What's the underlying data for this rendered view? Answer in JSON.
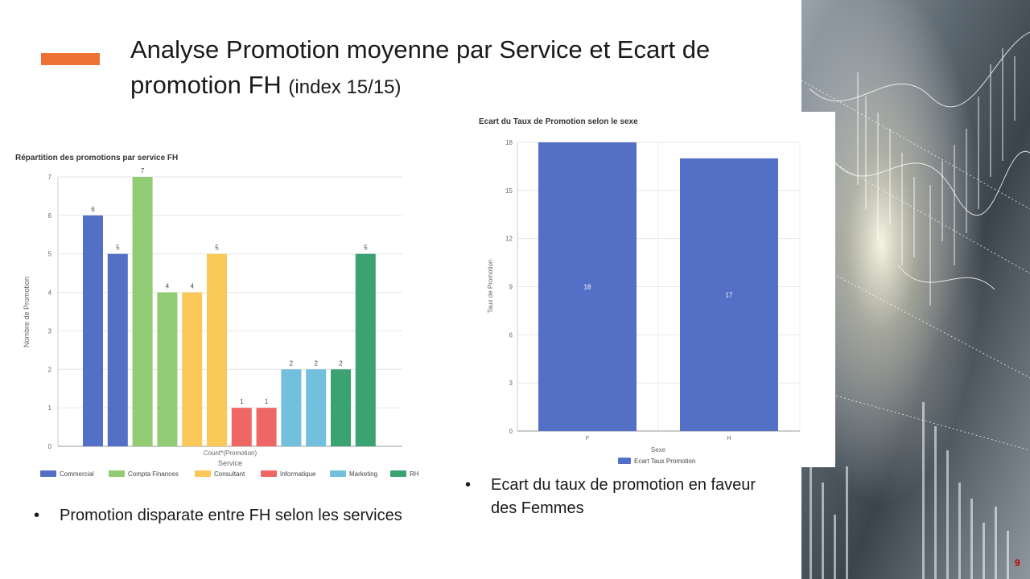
{
  "slide": {
    "title_main": "Analyse Promotion moyenne par Service et  Ecart de promotion FH",
    "title_small": "(index 15/15)",
    "page_number": "9",
    "accent_color": "#ed7233"
  },
  "bullets": {
    "left": "Promotion disparate entre FH selon les services",
    "right": "Ecart du taux de promotion en faveur des Femmes",
    "marker": "•"
  },
  "chart_data": [
    {
      "type": "bar",
      "title": "Répartition des promotions par service FH",
      "xlabel": "Count*(Promotion)",
      "legend_title": "Service",
      "ylabel": "Nombre de Promotion",
      "ylim": [
        0,
        7
      ],
      "yticks": [
        0,
        1,
        2,
        3,
        4,
        5,
        6,
        7
      ],
      "grid": true,
      "legend_position": "bottom",
      "series": [
        {
          "name": "Commercial",
          "color": "#5470c6",
          "values": [
            6,
            5
          ]
        },
        {
          "name": "Compta Finances",
          "color": "#91cc75",
          "values": [
            7,
            4
          ]
        },
        {
          "name": "Consultant",
          "color": "#fac858",
          "values": [
            4,
            5
          ]
        },
        {
          "name": "Informatique",
          "color": "#ee6666",
          "values": [
            1,
            1
          ]
        },
        {
          "name": "Marketing",
          "color": "#73c0de",
          "values": [
            2,
            2
          ]
        },
        {
          "name": "RH",
          "color": "#3ba272",
          "values": [
            2,
            5
          ]
        }
      ]
    },
    {
      "type": "bar",
      "title": "Ecart du Taux de Promotion selon le sexe",
      "categories": [
        "F",
        "H"
      ],
      "xlabel": "Sexe",
      "ylabel": "Taux de Promotion",
      "ylim": [
        0,
        18
      ],
      "yticks": [
        0,
        3,
        6,
        9,
        12,
        15,
        18
      ],
      "grid": true,
      "legend_position": "bottom",
      "series": [
        {
          "name": "Ecart Taux Promotion",
          "color": "#5470c6",
          "values": [
            18,
            17
          ]
        }
      ]
    }
  ]
}
